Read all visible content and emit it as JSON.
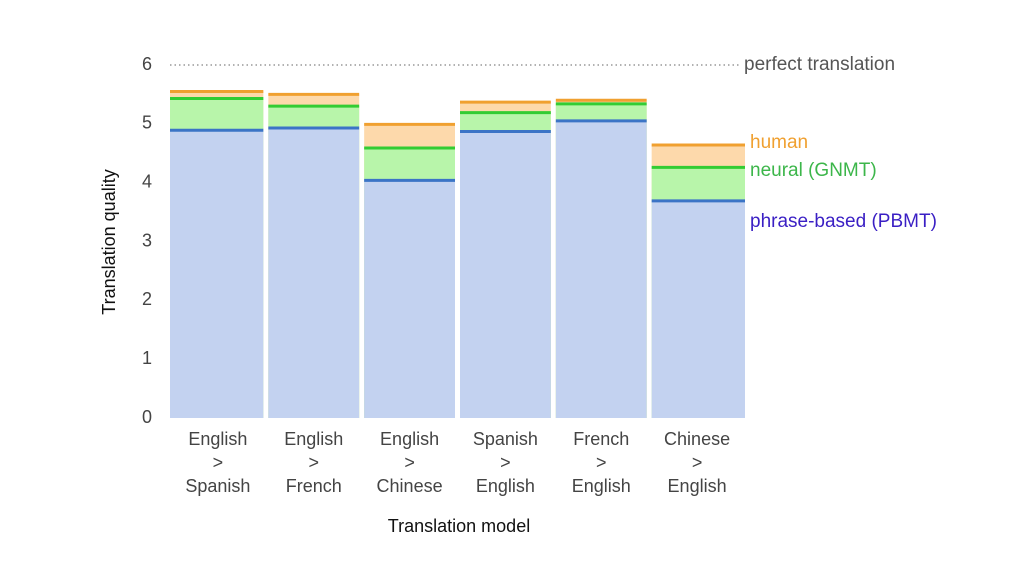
{
  "chart_data": {
    "type": "overlapping-bar",
    "y_label": "Translation quality",
    "x_label": "Translation model",
    "categories": [
      [
        "English",
        ">",
        "Spanish"
      ],
      [
        "English",
        ">",
        "French"
      ],
      [
        "English",
        ">",
        "Chinese"
      ],
      [
        "Spanish",
        ">",
        "English"
      ],
      [
        "French",
        ">",
        "English"
      ],
      [
        "Chinese",
        ">",
        "English"
      ]
    ],
    "series": [
      {
        "name": "phrase-based (PBMT)",
        "color": "#3b74c6",
        "fill": "#c3d2f0",
        "text_color": "#3a1fc4",
        "values": [
          4.89,
          4.93,
          4.04,
          4.87,
          5.05,
          3.69
        ]
      },
      {
        "name": "neural (GNMT)",
        "color": "#33cc33",
        "fill": "#b8f5aa",
        "text_color": "#3cb64a",
        "values": [
          5.43,
          5.3,
          4.59,
          5.19,
          5.34,
          4.26
        ]
      },
      {
        "name": "human",
        "color": "#f0a030",
        "fill": "#fdd9ab",
        "text_color": "#f0a030",
        "values": [
          5.55,
          5.5,
          4.99,
          5.37,
          5.4,
          4.64
        ]
      }
    ],
    "annotation": {
      "text": "perfect translation",
      "value": 6
    },
    "ylim": [
      0,
      6
    ],
    "yticks": [
      0,
      1,
      2,
      3,
      4,
      5,
      6
    ]
  }
}
